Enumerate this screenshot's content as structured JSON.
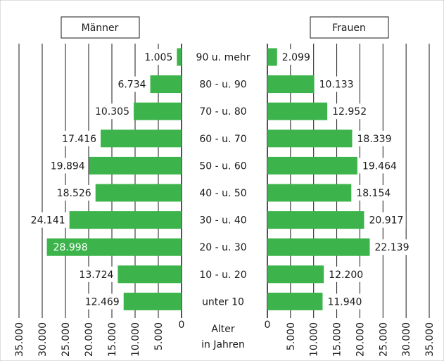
{
  "chart_data": {
    "type": "bar",
    "categories": [
      "90 u. mehr",
      "80 - u. 90",
      "70 - u. 80",
      "60 - u. 70",
      "50 - u. 60",
      "40 - u. 50",
      "30 - u. 40",
      "20 - u. 30",
      "10 - u. 20",
      "unter 10"
    ],
    "series": [
      {
        "name": "Männer",
        "values": [
          1005,
          6734,
          10305,
          17416,
          19894,
          18526,
          24141,
          28998,
          13724,
          12469
        ],
        "labels": [
          "1.005",
          "6.734",
          "10.305",
          "17.416",
          "19.894",
          "18.526",
          "24.141",
          "28.998",
          "13.724",
          "12.469"
        ]
      },
      {
        "name": "Frauen",
        "values": [
          2099,
          10133,
          12952,
          18339,
          19464,
          18154,
          20917,
          22139,
          12200,
          11940
        ],
        "labels": [
          "2.099",
          "10.133",
          "12.952",
          "18.339",
          "19.464",
          "18.154",
          "20.917",
          "22.139",
          "12.200",
          "11.940"
        ]
      }
    ],
    "xlim": [
      0,
      35000
    ],
    "ticks": [
      "0",
      "5.000",
      "10.000",
      "15.000",
      "20.000",
      "25.000",
      "30.000",
      "35.000"
    ],
    "tick_values": [
      0,
      5000,
      10000,
      15000,
      20000,
      25000,
      30000,
      35000
    ],
    "axis_title_line1": "Alter",
    "axis_title_line2": "in Jahren",
    "bar_color": "#3cb44b",
    "grid": true
  }
}
